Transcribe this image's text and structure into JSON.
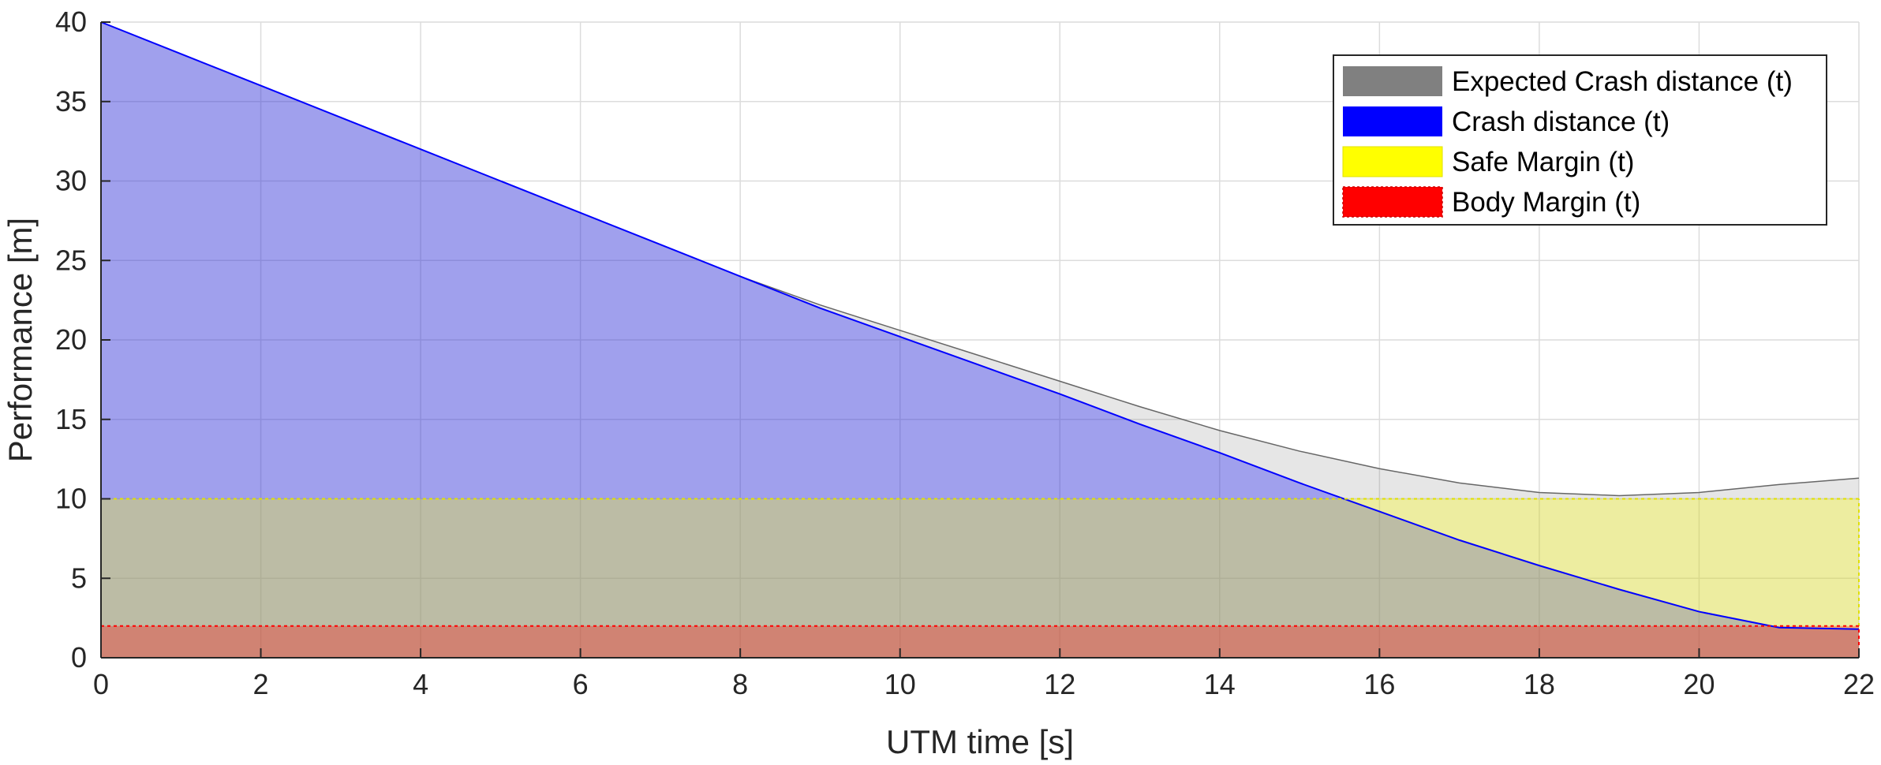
{
  "chart_data": {
    "type": "area",
    "title": "",
    "xlabel": "UTM time [s]",
    "ylabel": "Performance [m]",
    "xlim": [
      0,
      22
    ],
    "ylim": [
      0,
      40
    ],
    "xticks": [
      0,
      2,
      4,
      6,
      8,
      10,
      12,
      14,
      16,
      18,
      20,
      22
    ],
    "yticks": [
      0,
      5,
      10,
      15,
      20,
      25,
      30,
      35,
      40
    ],
    "grid": true,
    "legend_position": "top-right",
    "series": [
      {
        "name": "Expected Crash distance (t)",
        "color": "#808080",
        "fill_alpha": 0.2,
        "x": [
          0,
          1,
          2,
          3,
          4,
          5,
          6,
          7,
          8,
          9,
          10,
          11,
          12,
          13,
          14,
          15,
          16,
          17,
          18,
          19,
          20,
          21,
          22
        ],
        "values": [
          40,
          38,
          36,
          34,
          32,
          30,
          28,
          26,
          24,
          22.2,
          20.6,
          19,
          17.4,
          15.8,
          14.3,
          13,
          11.9,
          11,
          10.4,
          10.2,
          10.4,
          10.9,
          11.3
        ]
      },
      {
        "name": "Crash distance (t)",
        "color": "#0000ff",
        "fill_alpha": 0.3,
        "x": [
          0,
          1,
          2,
          3,
          4,
          5,
          6,
          7,
          8,
          9,
          10,
          11,
          12,
          13,
          14,
          15,
          16,
          17,
          18,
          19,
          20,
          21,
          22
        ],
        "values": [
          40,
          38,
          36,
          34,
          32,
          30,
          28,
          26,
          24,
          22,
          20.2,
          18.4,
          16.6,
          14.7,
          12.9,
          11,
          9.2,
          7.4,
          5.8,
          4.3,
          2.9,
          1.9,
          1.8
        ]
      },
      {
        "name": "Safe Margin (t)",
        "color": "#ffff00",
        "fill_alpha": 0.3,
        "x": [
          0,
          22
        ],
        "values": [
          10,
          10
        ]
      },
      {
        "name": "Body Margin (t)",
        "color": "#ff0000",
        "fill_alpha": 0.3,
        "x": [
          0,
          22
        ],
        "values": [
          2,
          2
        ]
      }
    ]
  }
}
